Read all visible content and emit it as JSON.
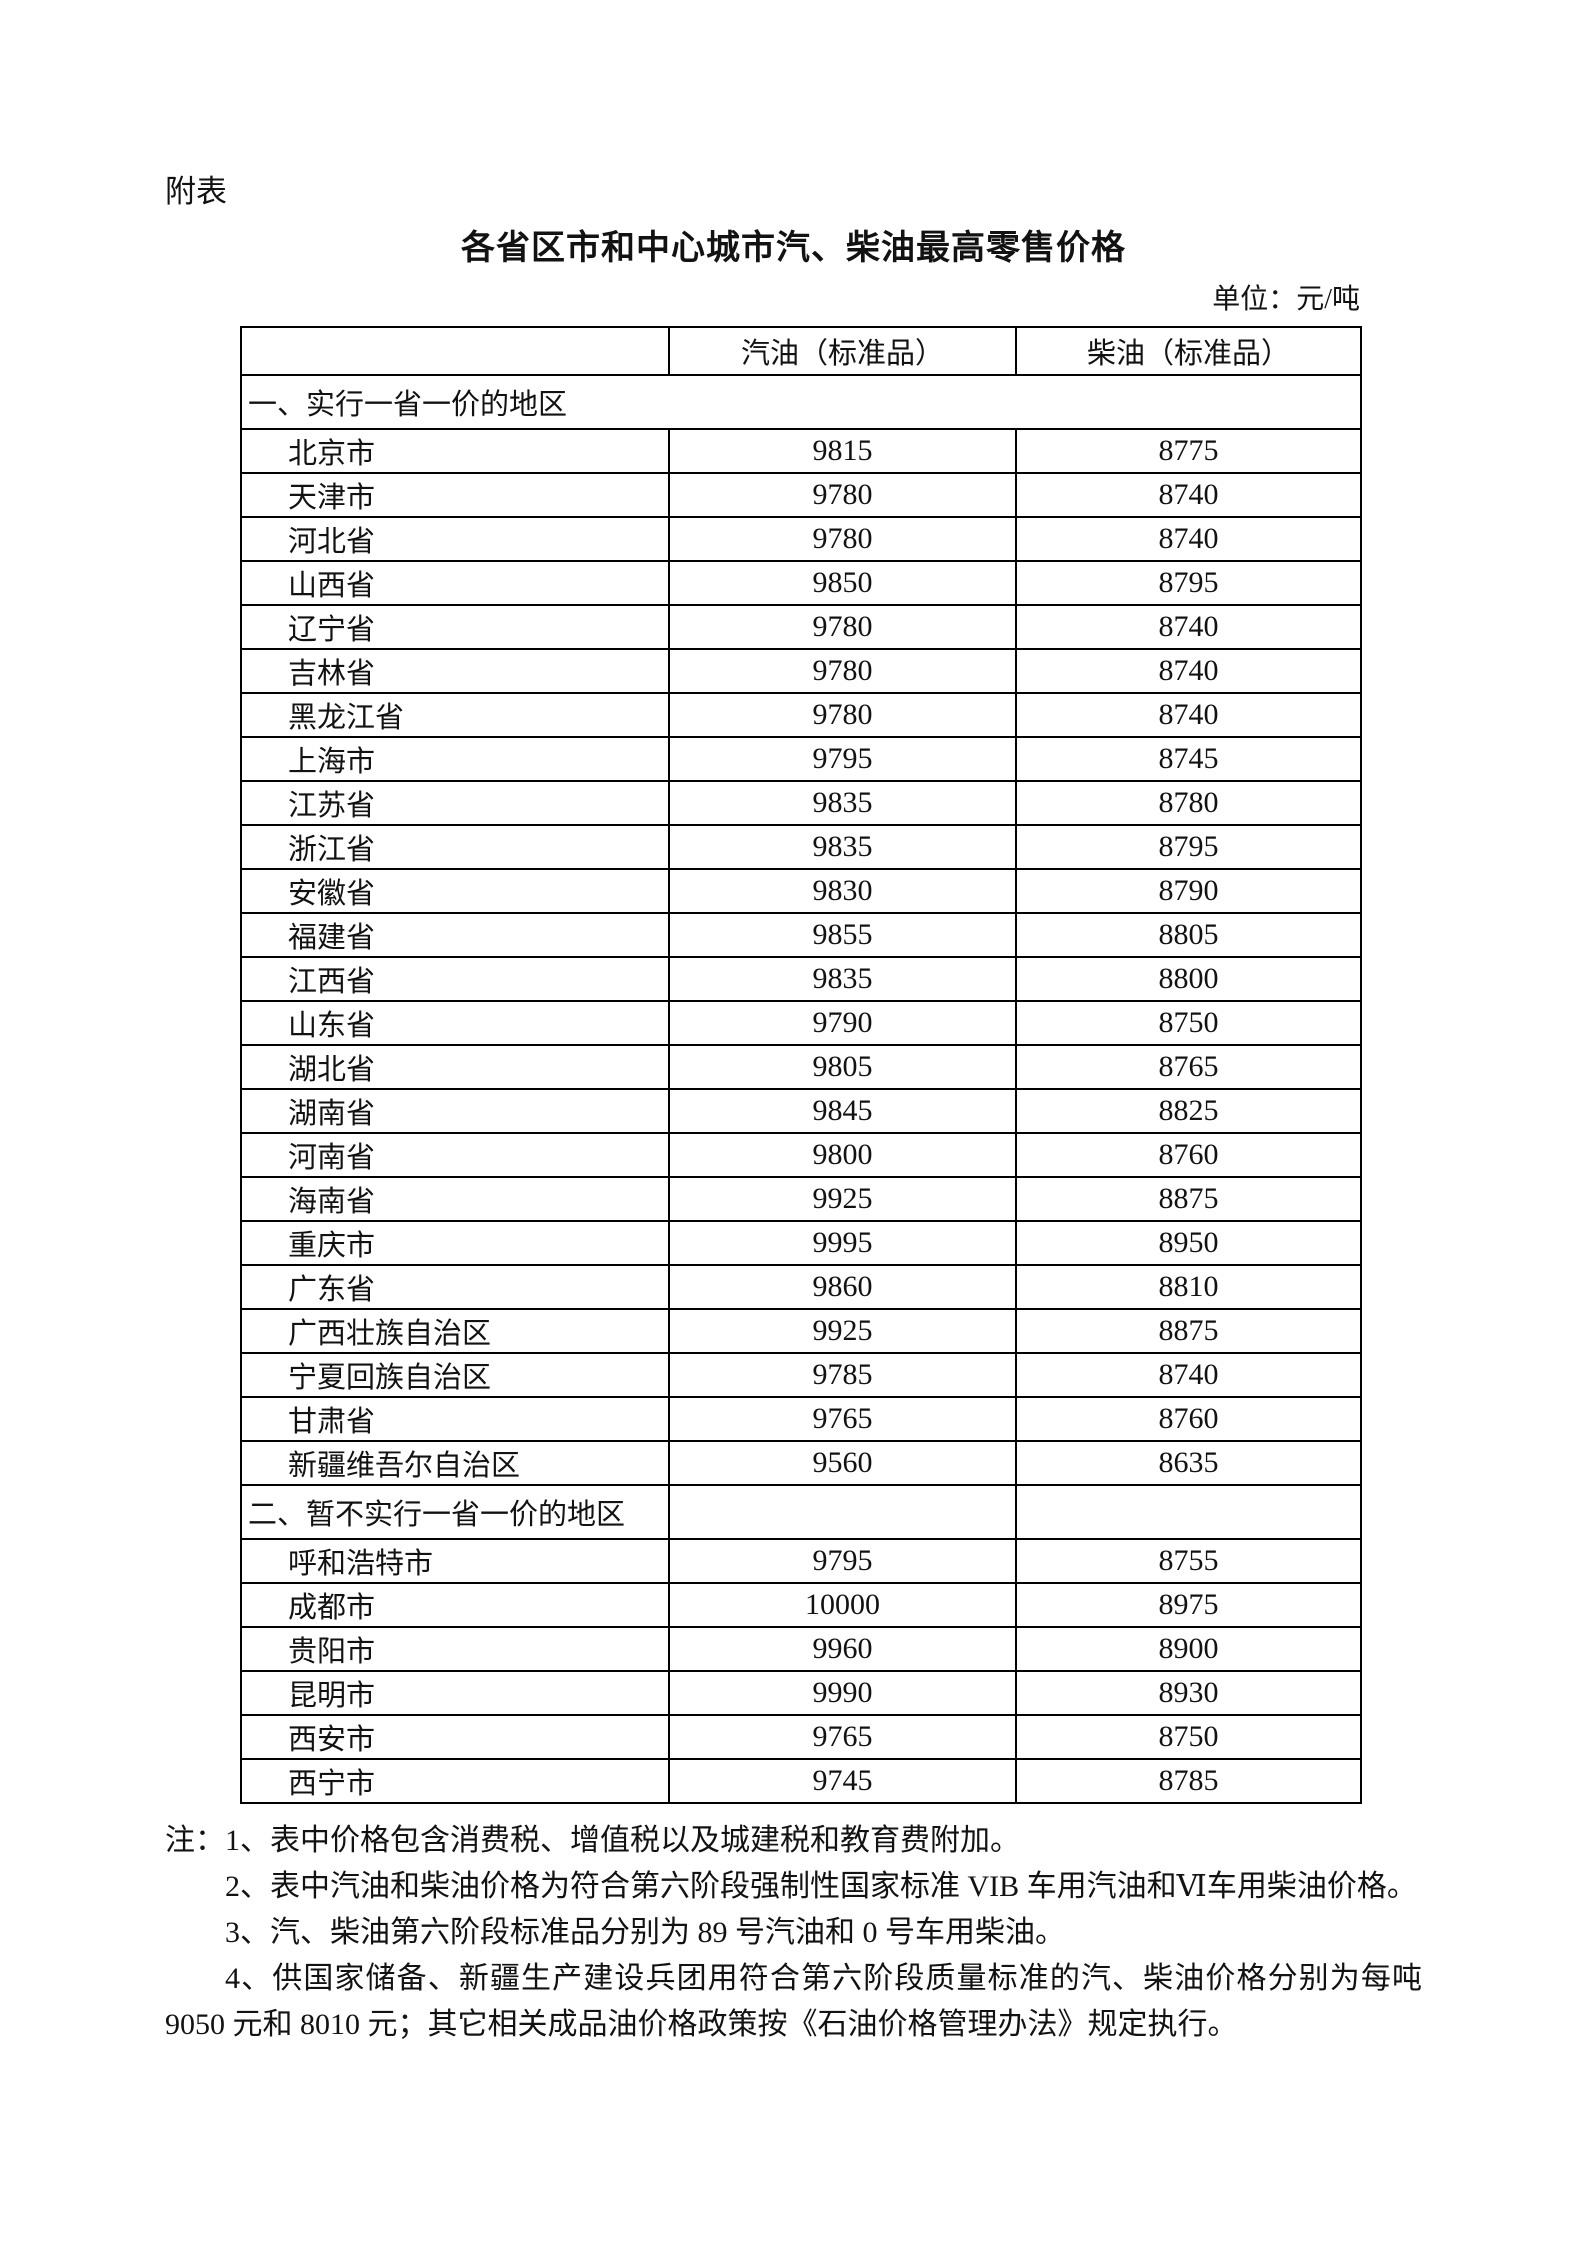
{
  "page": {
    "annex_label": "附表",
    "title": "各省区市和中心城市汽、柴油最高零售价格",
    "unit_label": "单位：元/吨"
  },
  "table": {
    "columns": [
      "",
      "汽油（标准品）",
      "柴油（标准品）"
    ],
    "sections": [
      {
        "header": "一、实行一省一价的地区",
        "merged_header": true,
        "rows": [
          {
            "region": "北京市",
            "gasoline": "9815",
            "diesel": "8775"
          },
          {
            "region": "天津市",
            "gasoline": "9780",
            "diesel": "8740"
          },
          {
            "region": "河北省",
            "gasoline": "9780",
            "diesel": "8740"
          },
          {
            "region": "山西省",
            "gasoline": "9850",
            "diesel": "8795"
          },
          {
            "region": "辽宁省",
            "gasoline": "9780",
            "diesel": "8740"
          },
          {
            "region": "吉林省",
            "gasoline": "9780",
            "diesel": "8740"
          },
          {
            "region": "黑龙江省",
            "gasoline": "9780",
            "diesel": "8740"
          },
          {
            "region": "上海市",
            "gasoline": "9795",
            "diesel": "8745"
          },
          {
            "region": "江苏省",
            "gasoline": "9835",
            "diesel": "8780"
          },
          {
            "region": "浙江省",
            "gasoline": "9835",
            "diesel": "8795"
          },
          {
            "region": "安徽省",
            "gasoline": "9830",
            "diesel": "8790"
          },
          {
            "region": "福建省",
            "gasoline": "9855",
            "diesel": "8805"
          },
          {
            "region": "江西省",
            "gasoline": "9835",
            "diesel": "8800"
          },
          {
            "region": "山东省",
            "gasoline": "9790",
            "diesel": "8750"
          },
          {
            "region": "湖北省",
            "gasoline": "9805",
            "diesel": "8765"
          },
          {
            "region": "湖南省",
            "gasoline": "9845",
            "diesel": "8825"
          },
          {
            "region": "河南省",
            "gasoline": "9800",
            "diesel": "8760"
          },
          {
            "region": "海南省",
            "gasoline": "9925",
            "diesel": "8875"
          },
          {
            "region": "重庆市",
            "gasoline": "9995",
            "diesel": "8950"
          },
          {
            "region": "广东省",
            "gasoline": "9860",
            "diesel": "8810"
          },
          {
            "region": "广西壮族自治区",
            "gasoline": "9925",
            "diesel": "8875"
          },
          {
            "region": "宁夏回族自治区",
            "gasoline": "9785",
            "diesel": "8740"
          },
          {
            "region": "甘肃省",
            "gasoline": "9765",
            "diesel": "8760"
          },
          {
            "region": "新疆维吾尔自治区",
            "gasoline": "9560",
            "diesel": "8635"
          }
        ]
      },
      {
        "header": "二、暂不实行一省一价的地区",
        "merged_header": false,
        "rows": [
          {
            "region": "呼和浩特市",
            "gasoline": "9795",
            "diesel": "8755"
          },
          {
            "region": "成都市",
            "gasoline": "10000",
            "diesel": "8975"
          },
          {
            "region": "贵阳市",
            "gasoline": "9960",
            "diesel": "8900"
          },
          {
            "region": "昆明市",
            "gasoline": "9990",
            "diesel": "8930"
          },
          {
            "region": "西安市",
            "gasoline": "9765",
            "diesel": "8750"
          },
          {
            "region": "西宁市",
            "gasoline": "9745",
            "diesel": "8785"
          }
        ]
      }
    ]
  },
  "notes": [
    "注：1、表中价格包含消费税、增值税以及城建税和教育费附加。",
    "2、表中汽油和柴油价格为符合第六阶段强制性国家标准 VIB 车用汽油和Ⅵ车用柴油价格。",
    "3、汽、柴油第六阶段标准品分别为 89 号汽油和 0 号车用柴油。",
    "4、供国家储备、新疆生产建设兵团用符合第六阶段质量标准的汽、柴油价格分别为每吨 9050 元和 8010 元；其它相关成品油价格政策按《石油价格管理办法》规定执行。"
  ]
}
